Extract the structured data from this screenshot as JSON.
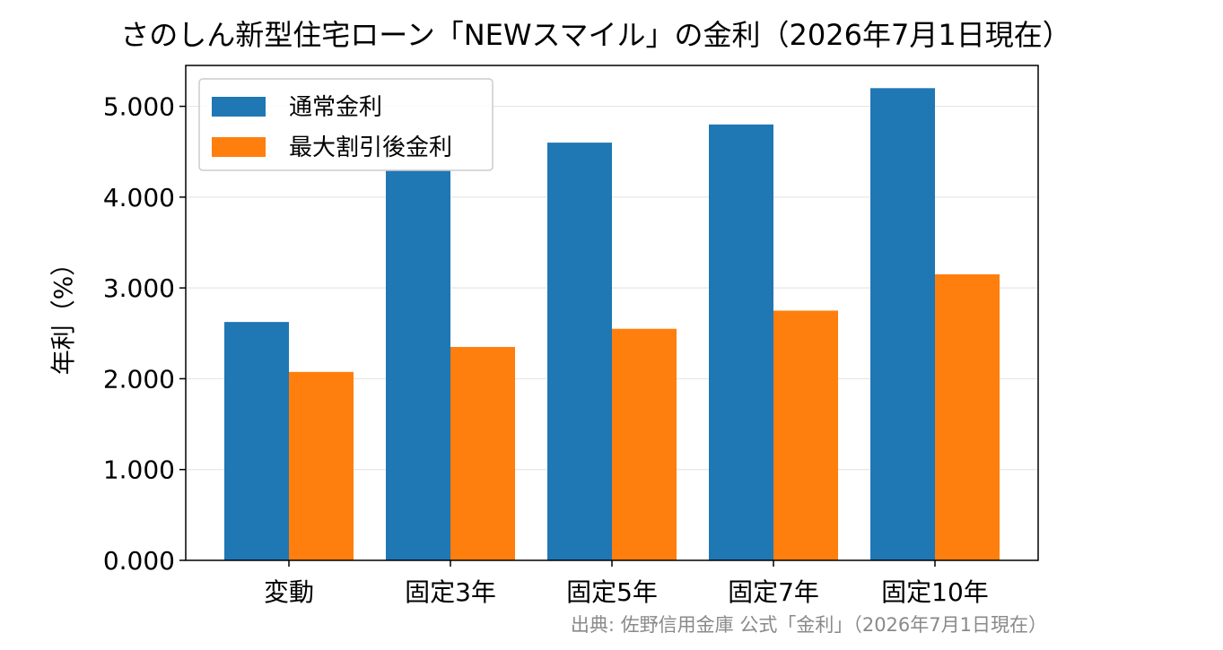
{
  "colors": {
    "series_normal": "#1f77b4",
    "series_discount": "#ff7f0e",
    "grid": "#e6e6e6",
    "axis": "#000000",
    "source_text": "#8a8a8a"
  },
  "source_note": "出典: 佐野信用金庫 公式「金利」（2026年7月1日現在）",
  "chart_data": {
    "type": "bar",
    "title": "さのしん新型住宅ローン「NEWスマイル」の金利（2026年7月1日現在）",
    "xlabel": "",
    "ylabel": "年利（%）",
    "categories": [
      "変動",
      "固定3年",
      "固定5年",
      "固定7年",
      "固定10年"
    ],
    "series": [
      {
        "name": "通常金利",
        "values": [
          2.625,
          4.3,
          4.6,
          4.8,
          5.2
        ]
      },
      {
        "name": "最大割引後金利",
        "values": [
          2.075,
          2.35,
          2.55,
          2.75,
          3.15
        ]
      }
    ],
    "ylim": [
      0,
      5.45
    ],
    "yticks": [
      "0.000",
      "1.000",
      "2.000",
      "3.000",
      "4.000",
      "5.000"
    ],
    "grid": "y-axis on",
    "legend": "top-left"
  }
}
